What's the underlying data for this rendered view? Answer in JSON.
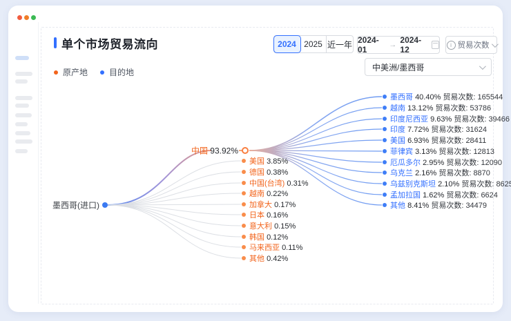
{
  "window": {
    "traffic_lights": [
      {
        "name": "close-button",
        "color": "#f25c3f"
      },
      {
        "name": "minimize-button",
        "color": "#ef7d28"
      },
      {
        "name": "maximize-button",
        "color": "#3cba54"
      }
    ]
  },
  "sidebar": {
    "items": [
      {
        "active": true
      },
      {
        "active": false
      },
      {
        "active": false
      },
      {
        "active": false
      },
      {
        "active": false
      },
      {
        "active": false
      },
      {
        "active": false
      },
      {
        "active": false
      },
      {
        "active": false
      },
      {
        "active": false
      }
    ]
  },
  "header": {
    "title": "单个市场贸易流向"
  },
  "toolbar": {
    "year_tabs": [
      {
        "label": "2024",
        "selected": true
      },
      {
        "label": "2025",
        "selected": false
      },
      {
        "label": "近一年",
        "selected": false
      }
    ],
    "date_range": {
      "start": "2024-01",
      "separator": "→",
      "end": "2024-12"
    },
    "metric_select": {
      "label": "贸易次数"
    },
    "market_select": {
      "value": "中美洲/墨西哥"
    }
  },
  "legend": [
    {
      "label": "原产地",
      "color": "#f2641c"
    },
    {
      "label": "目的地",
      "color": "#3370ff"
    }
  ],
  "chart_data": {
    "type": "tree",
    "count_label": "贸易次数",
    "root": {
      "label": "墨西哥(进口)"
    },
    "origins": [
      {
        "label": "中国",
        "percent": "93.92%",
        "main": true
      },
      {
        "label": "美国",
        "percent": "3.85%"
      },
      {
        "label": "德国",
        "percent": "0.38%"
      },
      {
        "label": "中国(台湾)",
        "percent": "0.31%"
      },
      {
        "label": "越南",
        "percent": "0.22%"
      },
      {
        "label": "加拿大",
        "percent": "0.17%"
      },
      {
        "label": "日本",
        "percent": "0.16%"
      },
      {
        "label": "意大利",
        "percent": "0.15%"
      },
      {
        "label": "韩国",
        "percent": "0.12%"
      },
      {
        "label": "马来西亚",
        "percent": "0.11%"
      },
      {
        "label": "其他",
        "percent": "0.42%"
      }
    ],
    "destinations": [
      {
        "label": "墨西哥",
        "percent": "40.40%",
        "count": 165544
      },
      {
        "label": "越南",
        "percent": "13.12%",
        "count": 53786
      },
      {
        "label": "印度尼西亚",
        "percent": "9.63%",
        "count": 39466
      },
      {
        "label": "印度",
        "percent": "7.72%",
        "count": 31624
      },
      {
        "label": "美国",
        "percent": "6.93%",
        "count": 28411
      },
      {
        "label": "菲律宾",
        "percent": "3.13%",
        "count": 12813
      },
      {
        "label": "厄瓜多尔",
        "percent": "2.95%",
        "count": 12090
      },
      {
        "label": "乌克兰",
        "percent": "2.16%",
        "count": 8870
      },
      {
        "label": "乌兹别克斯坦",
        "percent": "2.10%",
        "count": 8625
      },
      {
        "label": "孟加拉国",
        "percent": "1.62%",
        "count": 6624
      },
      {
        "label": "其他",
        "percent": "8.41%",
        "count": 34479
      }
    ]
  },
  "colors": {
    "accent_blue": "#3370ff",
    "origin_orange": "#f2641c",
    "edge_gray": "#dcdfe4",
    "edge_blue": "#6e9bf2",
    "edge_salmon": "#e8967e"
  }
}
